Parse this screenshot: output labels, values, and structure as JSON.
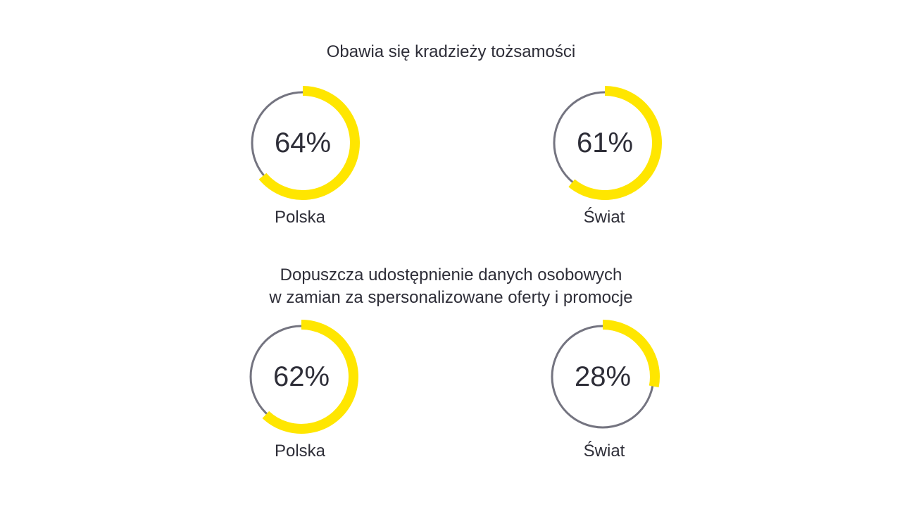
{
  "chart_data": [
    {
      "type": "pie",
      "title_lines": [
        "Obawia się kradzieży tożsamości"
      ],
      "series": [
        {
          "name": "Polska",
          "value": 64,
          "display": "64%"
        },
        {
          "name": "Świat",
          "value": 61,
          "display": "61%"
        }
      ]
    },
    {
      "type": "pie",
      "title_lines": [
        "Dopuszcza udostępnienie danych osobowych",
        "w zamian za spersonalizowane oferty i promocje"
      ],
      "series": [
        {
          "name": "Polska",
          "value": 62,
          "display": "62%"
        },
        {
          "name": "Świat",
          "value": 28,
          "display": "28%"
        }
      ]
    }
  ],
  "colors": {
    "filled": "#ffe600",
    "track": "#747480",
    "text": "#2e2e38"
  }
}
